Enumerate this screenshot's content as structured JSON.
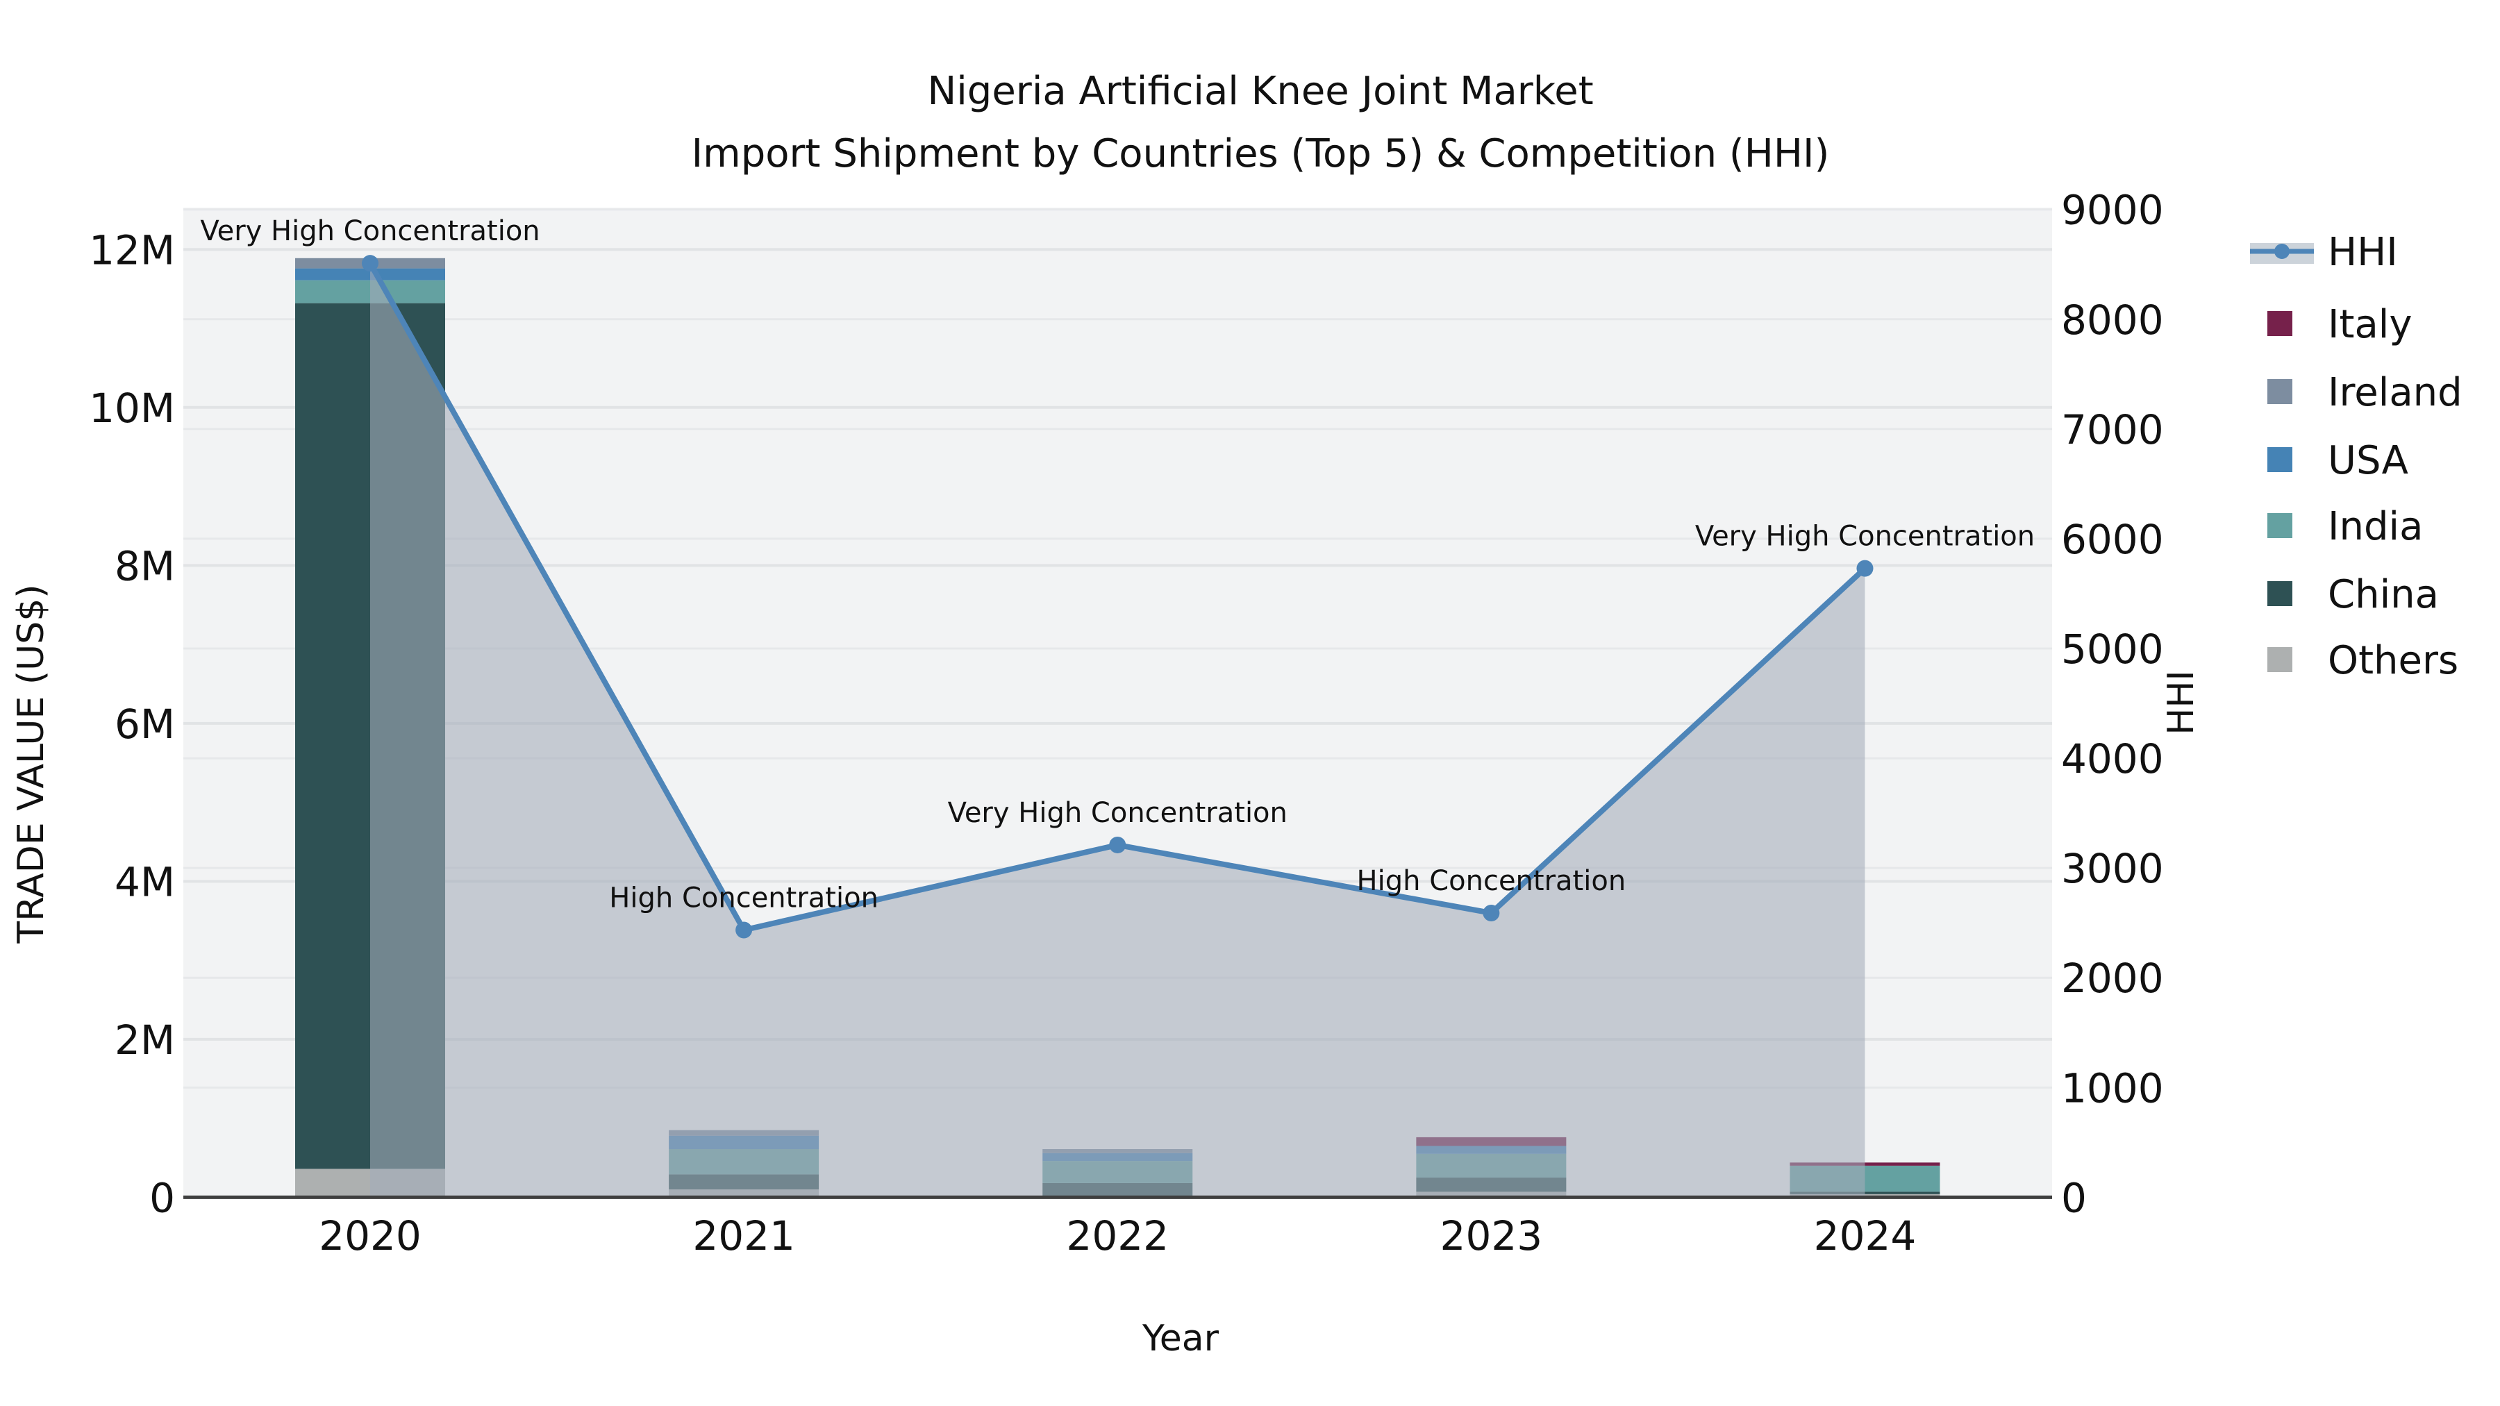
{
  "title": {
    "line1": "Nigeria Artificial Knee Joint Market",
    "line2": "Import Shipment by Countries (Top 5) & Competition (HHI)"
  },
  "axes": {
    "x_title": "Year",
    "left_title": "TRADE VALUE (US$)",
    "right_title": "HHI",
    "left_ticks": [
      {
        "label": "12M",
        "value": 12
      },
      {
        "label": "10M",
        "value": 10
      },
      {
        "label": "8M",
        "value": 8
      },
      {
        "label": "6M",
        "value": 6
      },
      {
        "label": "4M",
        "value": 4
      },
      {
        "label": "2M",
        "value": 2
      },
      {
        "label": "0",
        "value": 0
      }
    ],
    "right_ticks": [
      {
        "label": "9000",
        "value": 9000
      },
      {
        "label": "8000",
        "value": 8000
      },
      {
        "label": "7000",
        "value": 7000
      },
      {
        "label": "6000",
        "value": 6000
      },
      {
        "label": "5000",
        "value": 5000
      },
      {
        "label": "4000",
        "value": 4000
      },
      {
        "label": "3000",
        "value": 3000
      },
      {
        "label": "2000",
        "value": 2000
      },
      {
        "label": "1000",
        "value": 1000
      },
      {
        "label": "0",
        "value": 0
      }
    ]
  },
  "legend": {
    "items": [
      {
        "label": "HHI",
        "type": "line",
        "color": "#4e85b8"
      },
      {
        "label": "Italy",
        "type": "swatch",
        "color": "#76214b"
      },
      {
        "label": "Ireland",
        "type": "swatch",
        "color": "#7d8da0"
      },
      {
        "label": "USA",
        "type": "swatch",
        "color": "#4583b5"
      },
      {
        "label": "India",
        "type": "swatch",
        "color": "#64a1a1"
      },
      {
        "label": "China",
        "type": "swatch",
        "color": "#2e5154"
      },
      {
        "label": "Others",
        "type": "swatch",
        "color": "#adb0b0"
      }
    ]
  },
  "colors": {
    "plot_bg": "#f2f3f4",
    "grid_minor": "#e6e8ea",
    "grid_major": "#e1e3e5",
    "axis_line": "#3f3f3f",
    "hhi_line": "#4e85b8",
    "hhi_area": "rgba(164,172,186,0.58)",
    "legend_band": "#ccd3da"
  },
  "chart_data": {
    "type": "bar+line",
    "title": "Nigeria Artificial Knee Joint Market — Import Shipment by Countries (Top 5) & Competition (HHI)",
    "categories": [
      "2020",
      "2021",
      "2022",
      "2023",
      "2024"
    ],
    "bar_unit": "million US$",
    "left_axis_range": [
      0,
      12.53
    ],
    "right_axis_range": [
      0,
      9016
    ],
    "stack_order_bottom_to_top": [
      "Others",
      "China",
      "India",
      "USA",
      "Ireland",
      "Italy"
    ],
    "series": [
      {
        "name": "Others",
        "color": "#adb0b0",
        "values": [
          0.36,
          0.1,
          0.02,
          0.07,
          0.04
        ]
      },
      {
        "name": "China",
        "color": "#2e5154",
        "values": [
          10.96,
          0.19,
          0.16,
          0.18,
          0.03
        ]
      },
      {
        "name": "India",
        "color": "#64a1a1",
        "values": [
          0.29,
          0.32,
          0.28,
          0.3,
          0.33
        ]
      },
      {
        "name": "USA",
        "color": "#4583b5",
        "values": [
          0.15,
          0.17,
          0.1,
          0.1,
          0.0
        ]
      },
      {
        "name": "Ireland",
        "color": "#7d8da0",
        "values": [
          0.13,
          0.07,
          0.05,
          0.0,
          0.0
        ]
      },
      {
        "name": "Italy",
        "color": "#76214b",
        "values": [
          0.0,
          0.0,
          0.0,
          0.11,
          0.04
        ]
      }
    ],
    "bar_totals": [
      11.89,
      0.85,
      0.61,
      0.76,
      0.44
    ],
    "hhi": {
      "name": "HHI",
      "axis": "right",
      "values": [
        8510,
        2435,
        3210,
        2590,
        5730
      ]
    },
    "annotations": [
      {
        "category": "2020",
        "text": "Very High Concentration"
      },
      {
        "category": "2021",
        "text": "High Concentration"
      },
      {
        "category": "2022",
        "text": "Very High Concentration"
      },
      {
        "category": "2023",
        "text": "High Concentration"
      },
      {
        "category": "2024",
        "text": "Very High Concentration"
      }
    ],
    "legend_position": "right",
    "grid": true
  }
}
